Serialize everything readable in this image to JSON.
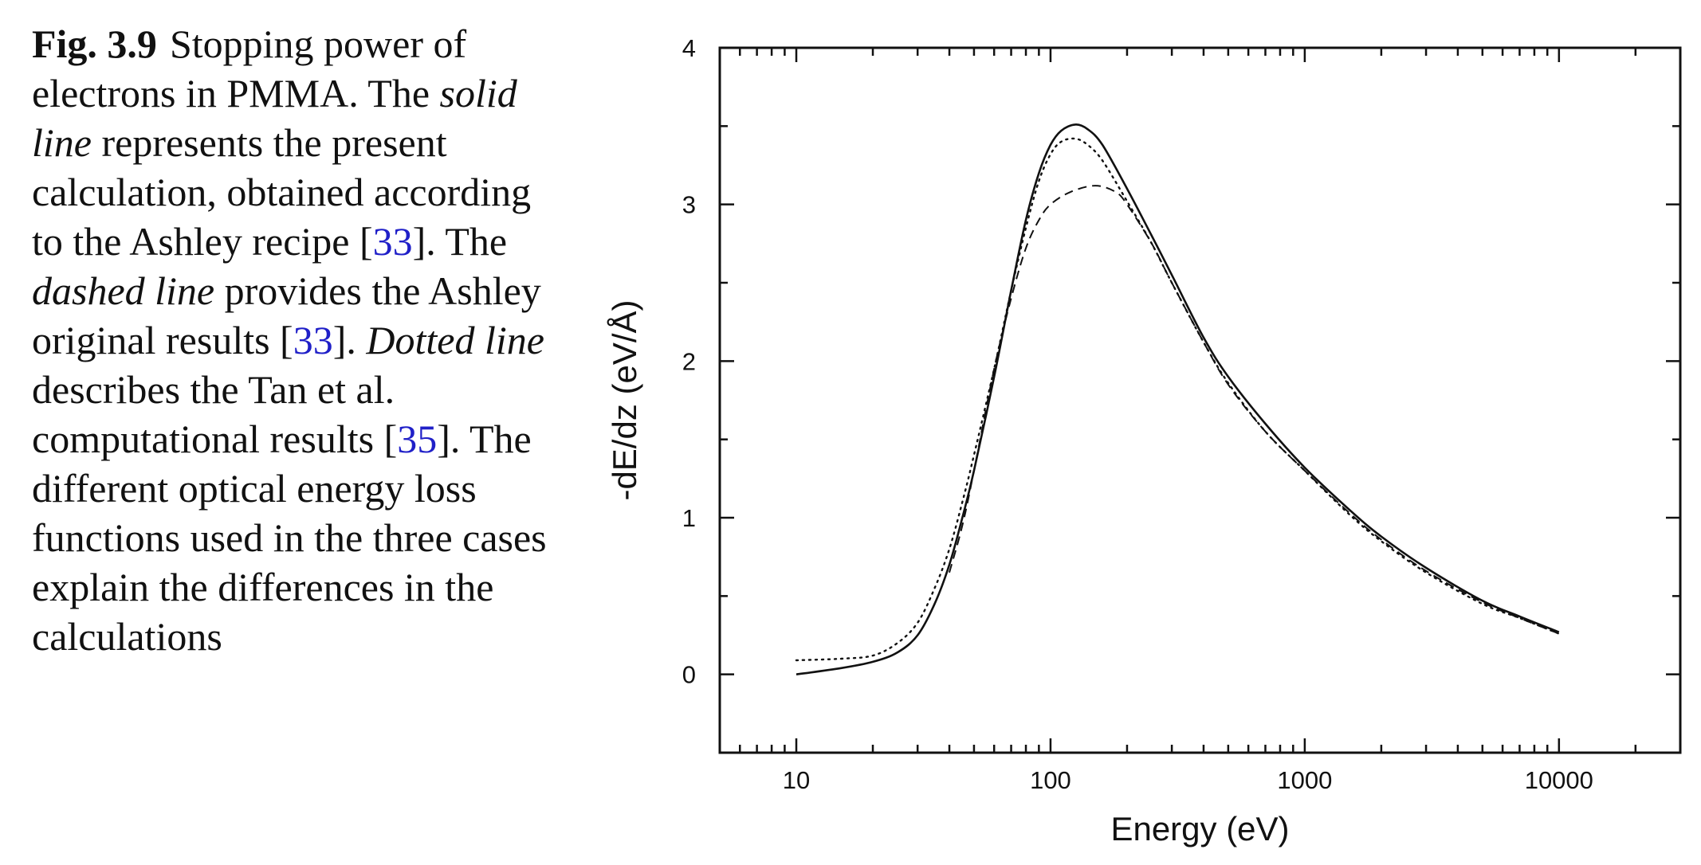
{
  "caption": {
    "label": "Fig. 3.9",
    "t1": "Stopping power of electrons in PMMA. The ",
    "solid": "solid line",
    "t2": " represents the present calculation, obtained according to the Ashley recipe [",
    "ref_ashley_1": "33",
    "t3": "]. The ",
    "dashed": "dashed line",
    "t4": " provides the Ashley original results [",
    "ref_ashley_2": "33",
    "t5": "]. ",
    "dotted": "Dotted line",
    "t6": " describes the Tan et al. computational results [",
    "ref_tan": "35",
    "t7": "]. The different optical energy loss functions used in the three cases explain the differences in the calculations"
  },
  "chart_data": {
    "type": "line",
    "xlabel": "Energy (eV)",
    "ylabel": "-dE/dz (eV/Å)",
    "xscale": "log",
    "xlim": [
      5,
      30000
    ],
    "ylim": [
      -0.5,
      4
    ],
    "xticks": [
      10,
      100,
      1000,
      10000
    ],
    "xtick_labels": [
      "10",
      "100",
      "1000",
      "10000"
    ],
    "yticks": [
      0,
      1,
      2,
      3,
      4
    ],
    "ytick_labels": [
      "0",
      "1",
      "2",
      "3",
      "4"
    ],
    "grid": false,
    "legend": "none",
    "series": [
      {
        "style": "solid",
        "x": [
          10,
          15,
          20,
          25,
          30,
          35,
          40,
          45,
          50,
          60,
          70,
          80,
          90,
          100,
          110,
          125,
          140,
          160,
          200,
          250,
          300,
          400,
          500,
          700,
          1000,
          1500,
          2000,
          3000,
          5000,
          7000,
          10000
        ],
        "y": [
          0.0,
          0.04,
          0.08,
          0.14,
          0.25,
          0.45,
          0.7,
          1.0,
          1.3,
          1.9,
          2.45,
          2.9,
          3.2,
          3.38,
          3.47,
          3.51,
          3.48,
          3.38,
          3.1,
          2.8,
          2.55,
          2.15,
          1.9,
          1.6,
          1.32,
          1.05,
          0.88,
          0.68,
          0.47,
          0.37,
          0.27
        ]
      },
      {
        "style": "dashed",
        "x": [
          40,
          45,
          50,
          60,
          70,
          80,
          90,
          100,
          120,
          150,
          180,
          200,
          250,
          300,
          400,
          500,
          700,
          1000,
          1500,
          2000,
          3000,
          5000,
          7000,
          10000
        ],
        "y": [
          0.65,
          0.95,
          1.3,
          1.95,
          2.4,
          2.72,
          2.9,
          3.0,
          3.08,
          3.12,
          3.08,
          3.0,
          2.75,
          2.5,
          2.12,
          1.85,
          1.55,
          1.3,
          1.03,
          0.86,
          0.66,
          0.46,
          0.36,
          0.26
        ]
      },
      {
        "style": "dotted",
        "x": [
          10,
          15,
          20,
          25,
          30,
          35,
          40,
          45,
          50,
          60,
          70,
          80,
          90,
          100,
          110,
          125,
          140,
          160,
          200,
          250,
          300,
          400,
          500,
          700,
          1000,
          1500,
          2000,
          3000,
          5000,
          7000,
          10000
        ],
        "y": [
          0.09,
          0.1,
          0.12,
          0.2,
          0.33,
          0.55,
          0.8,
          1.1,
          1.4,
          1.95,
          2.45,
          2.85,
          3.15,
          3.32,
          3.4,
          3.42,
          3.38,
          3.28,
          3.02,
          2.75,
          2.5,
          2.12,
          1.86,
          1.55,
          1.3,
          1.02,
          0.85,
          0.65,
          0.45,
          0.36,
          0.26
        ]
      }
    ]
  }
}
